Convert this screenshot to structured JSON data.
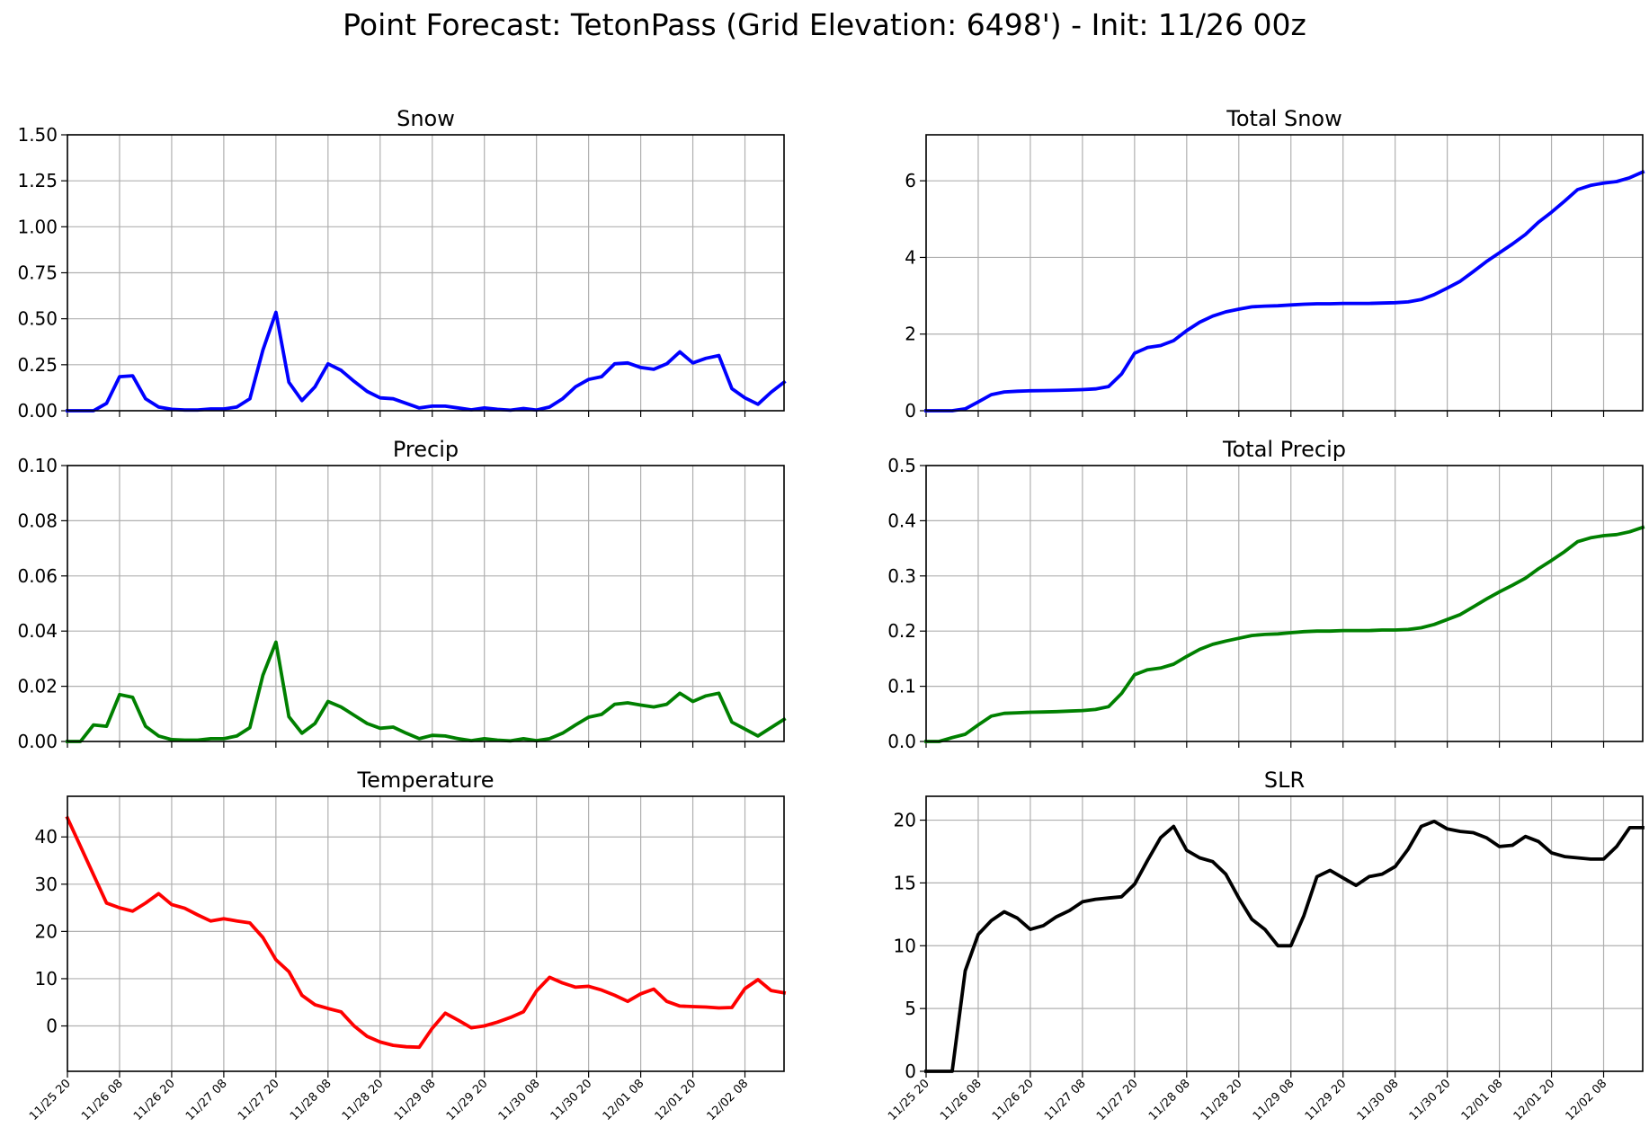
{
  "page": {
    "title": "Point Forecast: TetonPass (Grid Elevation: 6498') - Init: 11/26 00z"
  },
  "x_tick_labels": [
    "11/25 20",
    "11/26 08",
    "11/26 20",
    "11/27 08",
    "11/27 20",
    "11/28 08",
    "11/28 20",
    "11/29 08",
    "11/29 20",
    "11/30 08",
    "11/30 20",
    "12/01 08",
    "12/01 20",
    "12/02 08"
  ],
  "chart_data": [
    {
      "type": "line",
      "title": "Snow",
      "color": "#0000ff",
      "x": [
        0,
        1,
        2,
        3,
        4,
        5,
        6,
        7,
        8,
        9,
        10,
        11,
        12,
        13,
        14,
        15,
        16,
        17,
        18,
        19,
        20,
        21,
        22,
        23,
        24,
        25,
        26,
        27,
        28,
        29,
        30,
        31,
        32,
        33,
        34,
        35,
        36,
        37,
        38,
        39,
        40,
        41,
        42,
        43,
        44,
        45,
        46,
        47,
        48,
        49,
        50,
        51,
        52,
        53,
        54,
        55
      ],
      "values": [
        0,
        0,
        0,
        0.04,
        0.185,
        0.19,
        0.065,
        0.02,
        0.008,
        0.004,
        0.004,
        0.01,
        0.01,
        0.02,
        0.065,
        0.33,
        0.535,
        0.155,
        0.055,
        0.13,
        0.255,
        0.22,
        0.16,
        0.105,
        0.07,
        0.065,
        0.04,
        0.015,
        0.025,
        0.025,
        0.015,
        0.005,
        0.015,
        0.008,
        0.003,
        0.012,
        0.004,
        0.02,
        0.065,
        0.13,
        0.17,
        0.185,
        0.255,
        0.26,
        0.235,
        0.225,
        0.255,
        0.32,
        0.26,
        0.285,
        0.3,
        0.12,
        0.07,
        0.035,
        0.1,
        0.155
      ],
      "ylim": [
        0,
        1.5
      ],
      "yticks": [
        0,
        0.25,
        0.5,
        0.75,
        1.0,
        1.25,
        1.5
      ],
      "ytick_labels": [
        "0.00",
        "0.25",
        "0.50",
        "0.75",
        "1.00",
        "1.25",
        "1.50"
      ],
      "grid": true
    },
    {
      "type": "line",
      "title": "Total Snow",
      "color": "#0000ff",
      "x": [
        0,
        1,
        2,
        3,
        4,
        5,
        6,
        7,
        8,
        9,
        10,
        11,
        12,
        13,
        14,
        15,
        16,
        17,
        18,
        19,
        20,
        21,
        22,
        23,
        24,
        25,
        26,
        27,
        28,
        29,
        30,
        31,
        32,
        33,
        34,
        35,
        36,
        37,
        38,
        39,
        40,
        41,
        42,
        43,
        44,
        45,
        46,
        47,
        48,
        49,
        50,
        51,
        52,
        53,
        54,
        55
      ],
      "values": [
        0,
        0,
        0,
        0.05,
        0.23,
        0.42,
        0.49,
        0.51,
        0.52,
        0.525,
        0.53,
        0.54,
        0.55,
        0.57,
        0.63,
        0.96,
        1.5,
        1.65,
        1.7,
        1.83,
        2.09,
        2.31,
        2.47,
        2.58,
        2.65,
        2.71,
        2.73,
        2.74,
        2.76,
        2.78,
        2.79,
        2.79,
        2.8,
        2.8,
        2.8,
        2.81,
        2.82,
        2.84,
        2.9,
        3.03,
        3.2,
        3.38,
        3.63,
        3.89,
        4.12,
        4.35,
        4.6,
        4.92,
        5.18,
        5.47,
        5.77,
        5.88,
        5.94,
        5.98,
        6.08,
        6.23
      ],
      "ylim": [
        0,
        7.2
      ],
      "yticks": [
        0,
        2,
        4,
        6
      ],
      "ytick_labels": [
        "0",
        "2",
        "4",
        "6"
      ],
      "grid": true
    },
    {
      "type": "line",
      "title": "Precip",
      "color": "#008000",
      "x": [
        0,
        1,
        2,
        3,
        4,
        5,
        6,
        7,
        8,
        9,
        10,
        11,
        12,
        13,
        14,
        15,
        16,
        17,
        18,
        19,
        20,
        21,
        22,
        23,
        24,
        25,
        26,
        27,
        28,
        29,
        30,
        31,
        32,
        33,
        34,
        35,
        36,
        37,
        38,
        39,
        40,
        41,
        42,
        43,
        44,
        45,
        46,
        47,
        48,
        49,
        50,
        51,
        52,
        53,
        54,
        55
      ],
      "values": [
        0,
        0,
        0.006,
        0.0055,
        0.017,
        0.016,
        0.0055,
        0.002,
        0.0007,
        0.0005,
        0.0005,
        0.001,
        0.001,
        0.002,
        0.005,
        0.024,
        0.036,
        0.009,
        0.003,
        0.0065,
        0.0145,
        0.0125,
        0.0095,
        0.0065,
        0.0048,
        0.0052,
        0.003,
        0.001,
        0.0022,
        0.002,
        0.001,
        0.0003,
        0.001,
        0.0005,
        0.0002,
        0.001,
        0.0003,
        0.001,
        0.003,
        0.006,
        0.0088,
        0.0098,
        0.0135,
        0.014,
        0.0132,
        0.0125,
        0.0135,
        0.0175,
        0.0145,
        0.0165,
        0.0175,
        0.007,
        0.0045,
        0.002,
        0.005,
        0.008
      ],
      "ylim": [
        0,
        0.1
      ],
      "yticks": [
        0,
        0.02,
        0.04,
        0.06,
        0.08,
        0.1
      ],
      "ytick_labels": [
        "0.00",
        "0.02",
        "0.04",
        "0.06",
        "0.08",
        "0.10"
      ],
      "grid": true
    },
    {
      "type": "line",
      "title": "Total Precip",
      "color": "#008000",
      "x": [
        0,
        1,
        2,
        3,
        4,
        5,
        6,
        7,
        8,
        9,
        10,
        11,
        12,
        13,
        14,
        15,
        16,
        17,
        18,
        19,
        20,
        21,
        22,
        23,
        24,
        25,
        26,
        27,
        28,
        29,
        30,
        31,
        32,
        33,
        34,
        35,
        36,
        37,
        38,
        39,
        40,
        41,
        42,
        43,
        44,
        45,
        46,
        47,
        48,
        49,
        50,
        51,
        52,
        53,
        54,
        55
      ],
      "values": [
        0,
        0,
        0.007,
        0.013,
        0.03,
        0.046,
        0.051,
        0.052,
        0.053,
        0.0535,
        0.054,
        0.055,
        0.056,
        0.058,
        0.063,
        0.087,
        0.121,
        0.13,
        0.133,
        0.14,
        0.154,
        0.167,
        0.176,
        0.182,
        0.187,
        0.192,
        0.194,
        0.195,
        0.197,
        0.199,
        0.2,
        0.2,
        0.201,
        0.201,
        0.201,
        0.202,
        0.202,
        0.203,
        0.206,
        0.212,
        0.221,
        0.23,
        0.244,
        0.258,
        0.271,
        0.283,
        0.296,
        0.313,
        0.328,
        0.344,
        0.362,
        0.369,
        0.373,
        0.375,
        0.38,
        0.388
      ],
      "ylim": [
        0,
        0.5
      ],
      "yticks": [
        0,
        0.1,
        0.2,
        0.3,
        0.4,
        0.5
      ],
      "ytick_labels": [
        "0.0",
        "0.1",
        "0.2",
        "0.3",
        "0.4",
        "0.5"
      ],
      "grid": true
    },
    {
      "type": "line",
      "title": "Temperature",
      "color": "#ff0000",
      "x": [
        0,
        1,
        2,
        3,
        4,
        5,
        6,
        7,
        8,
        9,
        10,
        11,
        12,
        13,
        14,
        15,
        16,
        17,
        18,
        19,
        20,
        21,
        22,
        23,
        24,
        25,
        26,
        27,
        28,
        29,
        30,
        31,
        32,
        33,
        34,
        35,
        36,
        37,
        38,
        39,
        40,
        41,
        42,
        43,
        44,
        45,
        46,
        47,
        48,
        49,
        50,
        51,
        52,
        53,
        54,
        55
      ],
      "values": [
        44,
        38,
        32,
        26,
        25,
        24.3,
        26,
        28,
        25.7,
        24.9,
        23.5,
        22.2,
        22.7,
        22.2,
        21.8,
        18.7,
        14,
        11.5,
        6.5,
        4.5,
        3.7,
        3,
        0,
        -2.2,
        -3.4,
        -4.1,
        -4.4,
        -4.5,
        -0.5,
        2.7,
        1.2,
        -0.4,
        0,
        0.8,
        1.8,
        3,
        7.4,
        10.3,
        9.1,
        8.2,
        8.4,
        7.6,
        6.5,
        5.2,
        6.8,
        7.8,
        5.2,
        4.2,
        4.1,
        4,
        3.8,
        3.9,
        7.9,
        9.8,
        7.5,
        7
      ],
      "ylim": [
        -9.6,
        48.6
      ],
      "yticks": [
        0,
        10,
        20,
        30,
        40
      ],
      "ytick_labels": [
        "0",
        "10",
        "20",
        "30",
        "40"
      ],
      "grid": true
    },
    {
      "type": "line",
      "title": "SLR",
      "color": "#000000",
      "x": [
        0,
        1,
        2,
        3,
        4,
        5,
        6,
        7,
        8,
        9,
        10,
        11,
        12,
        13,
        14,
        15,
        16,
        17,
        18,
        19,
        20,
        21,
        22,
        23,
        24,
        25,
        26,
        27,
        28,
        29,
        30,
        31,
        32,
        33,
        34,
        35,
        36,
        37,
        38,
        39,
        40,
        41,
        42,
        43,
        44,
        45,
        46,
        47,
        48,
        49,
        50,
        51,
        52,
        53,
        54,
        55
      ],
      "values": [
        0,
        0,
        0,
        8,
        10.9,
        12,
        12.7,
        12.2,
        11.3,
        11.6,
        12.3,
        12.8,
        13.5,
        13.7,
        13.8,
        13.9,
        14.9,
        16.8,
        18.6,
        19.5,
        17.6,
        17,
        16.7,
        15.7,
        13.8,
        12.1,
        11.3,
        10,
        10,
        12.4,
        15.5,
        16,
        15.4,
        14.8,
        15.5,
        15.7,
        16.3,
        17.7,
        19.5,
        19.9,
        19.3,
        19.1,
        19,
        18.6,
        17.9,
        18,
        18.7,
        18.3,
        17.4,
        17.1,
        17,
        16.9,
        16.9,
        17.9,
        19.4,
        19.4
      ],
      "ylim": [
        0,
        21.9
      ],
      "yticks": [
        0,
        5,
        10,
        15,
        20
      ],
      "ytick_labels": [
        "0",
        "5",
        "10",
        "15",
        "20"
      ],
      "grid": true
    }
  ]
}
